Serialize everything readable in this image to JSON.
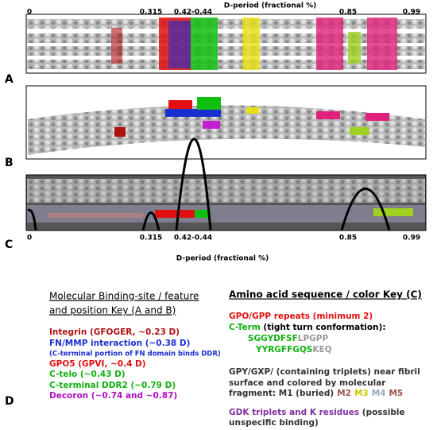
{
  "top_axis": {
    "ticks": [
      "0",
      "0.315",
      "0.42-0.44",
      "0.85",
      "0.99"
    ],
    "label": "D-period (fractional %)"
  },
  "bottom_axis": {
    "ticks": [
      "0",
      "0.315",
      "0.42-0.44",
      "0.85",
      "0.99"
    ],
    "label": "D-period (fractional %)"
  },
  "panels": [
    "A",
    "B",
    "C",
    "D"
  ],
  "left_key": {
    "title": [
      "Molecular Binding-site / feature",
      "and position Key (A and B)"
    ],
    "items": [
      {
        "text": "Integrin (GFOGER, ~0.23 D)",
        "color": "#b01010"
      },
      {
        "text": "FN/MMP interaction (~0.38 D)",
        "color": "#1a2fd0"
      },
      {
        "text": "(C-terminal portion of FN domain binds DDR)",
        "color": "#1a2fd0"
      },
      {
        "text": "GPO5 (GPVI, ~0.4 D)",
        "color": "#e01010"
      },
      {
        "text": "C-telo (~0.43 D)",
        "color": "#10b010"
      },
      {
        "text": "C-terminal DDR2 (~0.79 D)",
        "color": "#10b010"
      },
      {
        "text": "Decoron (~0.74 and ~0.87)",
        "color": "#b010c0"
      }
    ]
  },
  "right_key": {
    "title": "Amino acid sequence / color Key (C)",
    "gpo": {
      "text": "GPO/GPP repeats (minimum 2)",
      "color": "#e01010"
    },
    "cterm": {
      "name": "C-Term",
      "rest": " (tight turn conformation):",
      "color": "#10b010"
    },
    "seq1": {
      "green": "SGGYDFSF",
      "gray": "LPGPP"
    },
    "seq2": {
      "green": "YYRGFFGQS",
      "gray": "KEQ"
    },
    "gpy": [
      "GPY/GXP/ (containing triplets) near fibril",
      "surface and colored by molecular",
      "fragment: M1 (buried)"
    ],
    "fragments": [
      {
        "text": "M2",
        "color": "#a0524a"
      },
      {
        "text": "M3",
        "color": "#c8c800"
      },
      {
        "text": "M4",
        "color": "#9aa8c0"
      },
      {
        "text": "M5",
        "color": "#a0524a"
      }
    ],
    "gdk": {
      "colored": "GDK triplets and K residues",
      "rest": " (possible",
      "line2": "unspecific binding)",
      "color": "#8030a0"
    }
  }
}
